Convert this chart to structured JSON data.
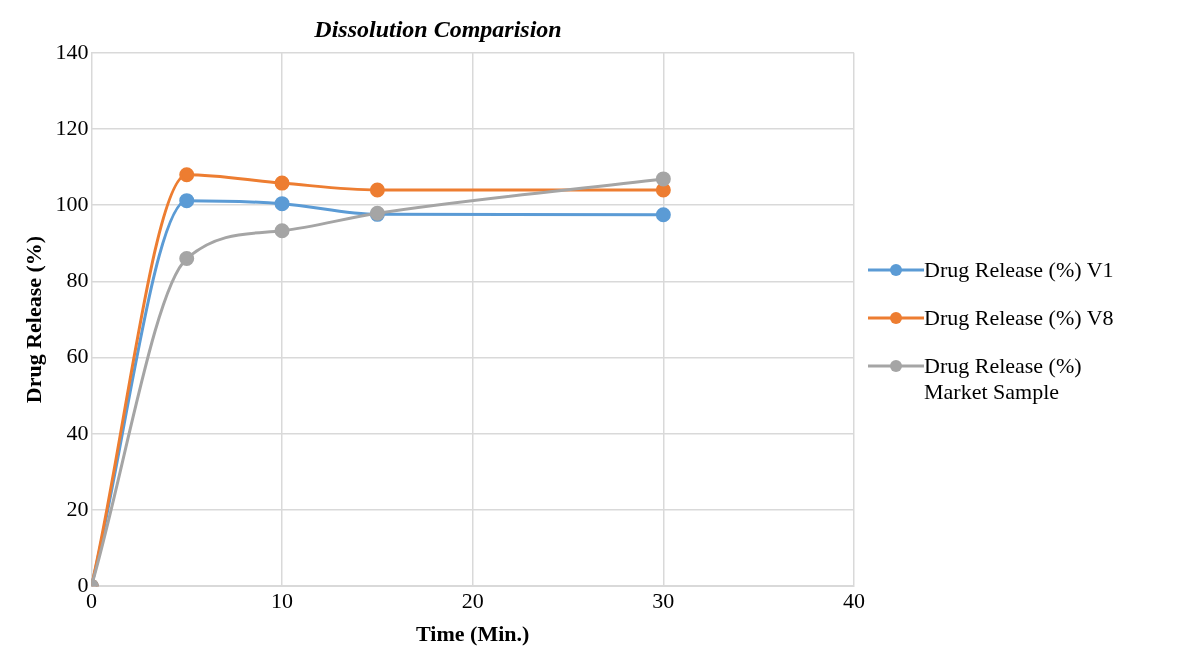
{
  "chart_data": {
    "type": "line",
    "title": "Dissolution Comparision",
    "xlabel": "Time (Min.)",
    "ylabel": "Drug Release (%)",
    "xlim": [
      0,
      40
    ],
    "xticks": [
      0,
      10,
      20,
      30,
      40
    ],
    "ylim": [
      0,
      140
    ],
    "yticks": [
      0,
      20,
      40,
      60,
      80,
      100,
      120,
      140
    ],
    "grid": true,
    "legend": "right",
    "marker": "circle",
    "line_style": "solid",
    "series": [
      {
        "name": "Drug Release (%) V1",
        "color": "#5b9bd5",
        "x": [
          0,
          5,
          10,
          15,
          30
        ],
        "values": [
          0,
          101.2,
          100.4,
          97.6,
          97.5
        ]
      },
      {
        "name": "Drug Release (%) V8",
        "color": "#ed7d31",
        "x": [
          0,
          5,
          10,
          15,
          30
        ],
        "values": [
          0,
          108,
          105.8,
          104,
          104
        ]
      },
      {
        "name": "Drug Release (%) Market Sample",
        "color": "#a5a5a5",
        "x": [
          0,
          5,
          10,
          15,
          30
        ],
        "values": [
          0,
          86,
          93.3,
          97.9,
          106.9
        ]
      }
    ]
  }
}
